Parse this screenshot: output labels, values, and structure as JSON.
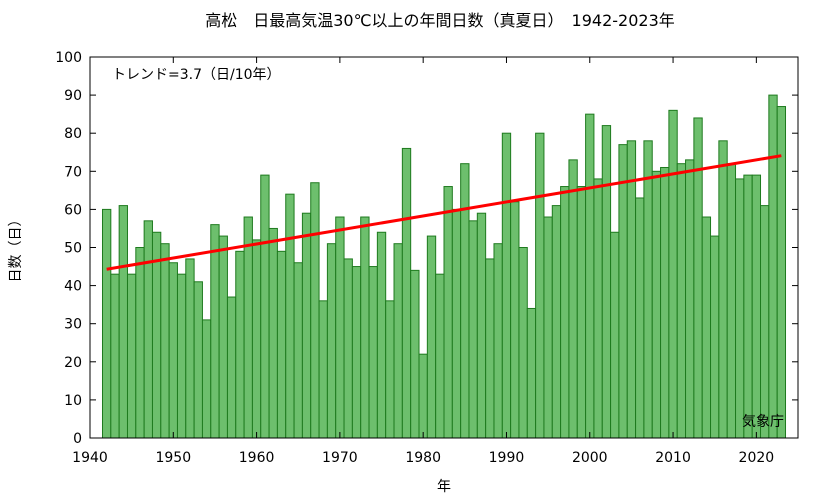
{
  "chart_data": {
    "type": "bar",
    "title": "高松　日最高気温30℃以上の年間日数（真夏日）　1942-2023年",
    "xlabel": "年",
    "ylabel": "日数（日）",
    "xlim": [
      1940,
      2025
    ],
    "ylim": [
      0,
      100
    ],
    "x_ticks": [
      1940,
      1950,
      1960,
      1970,
      1980,
      1990,
      2000,
      2010,
      2020
    ],
    "y_ticks": [
      0,
      10,
      20,
      30,
      40,
      50,
      60,
      70,
      80,
      90,
      100
    ],
    "grid": false,
    "x": [
      1942,
      1943,
      1944,
      1945,
      1946,
      1947,
      1948,
      1949,
      1950,
      1951,
      1952,
      1953,
      1954,
      1955,
      1956,
      1957,
      1958,
      1959,
      1960,
      1961,
      1962,
      1963,
      1964,
      1965,
      1966,
      1967,
      1968,
      1969,
      1970,
      1971,
      1972,
      1973,
      1974,
      1975,
      1976,
      1977,
      1978,
      1979,
      1980,
      1981,
      1982,
      1983,
      1984,
      1985,
      1986,
      1987,
      1988,
      1989,
      1990,
      1991,
      1992,
      1993,
      1994,
      1995,
      1996,
      1997,
      1998,
      1999,
      2000,
      2001,
      2002,
      2003,
      2004,
      2005,
      2006,
      2007,
      2008,
      2009,
      2010,
      2011,
      2012,
      2013,
      2014,
      2015,
      2016,
      2017,
      2018,
      2019,
      2020,
      2021,
      2022,
      2023
    ],
    "values": [
      60,
      43,
      61,
      43,
      50,
      57,
      54,
      51,
      46,
      43,
      47,
      41,
      31,
      56,
      53,
      37,
      49,
      58,
      52,
      69,
      55,
      49,
      64,
      46,
      59,
      67,
      36,
      51,
      58,
      47,
      45,
      58,
      45,
      54,
      36,
      51,
      76,
      44,
      22,
      53,
      43,
      66,
      60,
      72,
      57,
      59,
      47,
      51,
      80,
      62,
      50,
      34,
      80,
      58,
      61,
      66,
      73,
      66,
      85,
      68,
      82,
      54,
      77,
      78,
      63,
      78,
      70,
      71,
      86,
      72,
      73,
      84,
      58,
      53,
      78,
      72,
      68,
      69,
      69,
      61,
      90,
      87
    ],
    "bar_color": "#6dbf6d",
    "bar_edge_color": "#1e7a1e",
    "trend": {
      "label": "トレンド=3.7（日/10年）",
      "x": [
        1942,
        2023
      ],
      "y": [
        44.3,
        74.1
      ],
      "color": "#ff0000"
    },
    "source": "気象庁"
  }
}
